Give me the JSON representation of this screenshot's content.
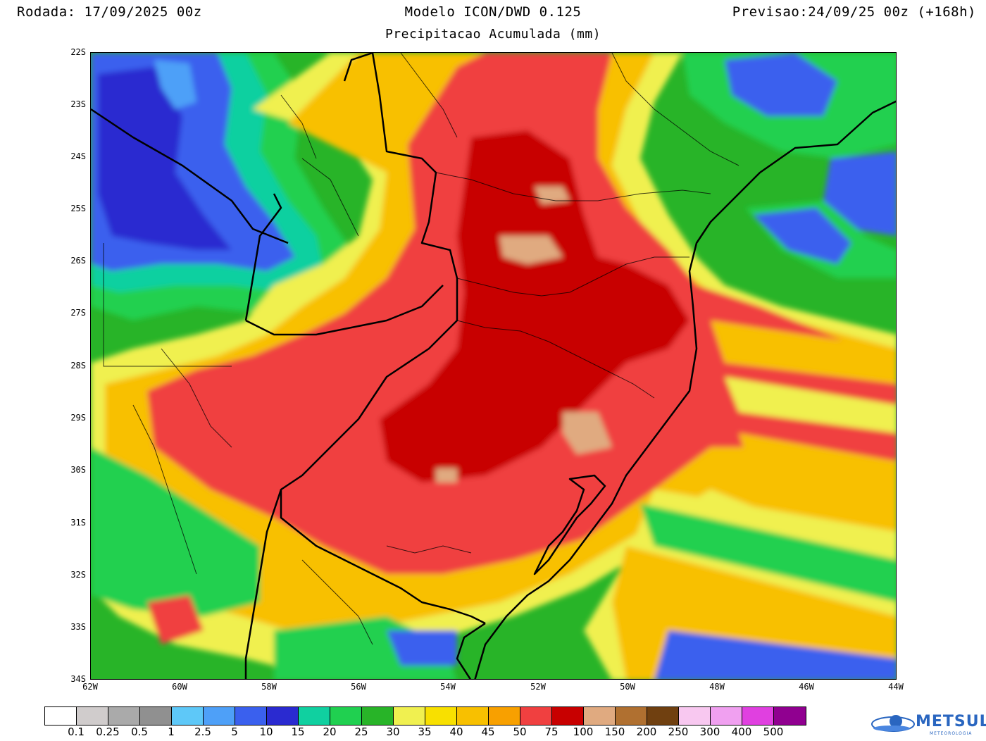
{
  "header": {
    "run": "Rodada: 17/09/2025 00z",
    "model": "Modelo ICON/DWD 0.125",
    "forecast": "Previsao:24/09/25 00z (+168h)",
    "subtitle": "Precipitacao Acumulada (mm)"
  },
  "axes": {
    "lat_labels": [
      "22S",
      "23S",
      "24S",
      "25S",
      "26S",
      "27S",
      "28S",
      "29S",
      "30S",
      "31S",
      "32S",
      "33S",
      "34S"
    ],
    "lon_labels": [
      "62W",
      "60W",
      "58W",
      "56W",
      "54W",
      "52W",
      "50W",
      "48W",
      "46W",
      "44W"
    ]
  },
  "legend": {
    "colors": [
      "#ffffff",
      "#d0cccc",
      "#aaaaaa",
      "#909090",
      "#5ec8f8",
      "#4ea0f8",
      "#3a60ee",
      "#2a2ad0",
      "#10d0a0",
      "#20d050",
      "#28b428",
      "#f0f050",
      "#f8e000",
      "#f8c000",
      "#f8a000",
      "#f04040",
      "#c80000",
      "#e0aa80",
      "#b07030",
      "#704010",
      "#f8c8f0",
      "#f0a0f0",
      "#e040e0",
      "#900090"
    ],
    "labels": [
      "0.1",
      "0.25",
      "0.5",
      "1",
      "2.5",
      "5",
      "10",
      "15",
      "20",
      "25",
      "30",
      "35",
      "40",
      "45",
      "50",
      "75",
      "100",
      "150",
      "200",
      "250",
      "300",
      "400",
      "500"
    ]
  },
  "logo": {
    "name": "METSUL",
    "sub": "METEOROLOGIA"
  }
}
